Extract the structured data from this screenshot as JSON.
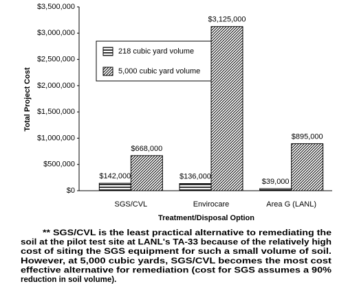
{
  "chart_data": {
    "type": "bar",
    "y_label": "Total Project Cost",
    "x_label": "Treatment/Disposal Option",
    "categories": [
      "SGS/CVL",
      "Envirocare",
      "Area G (LANL)"
    ],
    "series": [
      {
        "name": "218 cubic yard volume",
        "color": "#000000",
        "pattern": "horizontal",
        "values": [
          142000,
          136000,
          39000
        ],
        "value_labels": [
          "$142,000",
          "$136,000",
          "$39,000"
        ]
      },
      {
        "name": "5,000 cubic yard volume",
        "color": "#000000",
        "pattern": "diagonal",
        "values": [
          668000,
          3125000,
          895000
        ],
        "value_labels": [
          "$668,000",
          "$3,125,000",
          "$895,000"
        ]
      }
    ],
    "ylim": [
      0,
      3500000
    ],
    "yticks": [
      {
        "value": 0,
        "label": "$0"
      },
      {
        "value": 500000,
        "label": "$500,000"
      },
      {
        "value": 1000000,
        "label": "$1,000,000"
      },
      {
        "value": 1500000,
        "label": "$1,500,000"
      },
      {
        "value": 2000000,
        "label": "$2,000,000"
      },
      {
        "value": 2500000,
        "label": "$2,500,000"
      },
      {
        "value": 3000000,
        "label": "$3,000,000"
      },
      {
        "value": 3500000,
        "label": "$3,500,000"
      }
    ],
    "grid": false,
    "legend": "upper left"
  },
  "note": {
    "lines": [
      "** SGS/CVL is the least practical alternative to remediating the",
      "soil at the pilot test site at LANL's TA-33 because of the relatively high",
      "cost of siting the SGS equipment for such a small volume of soil.",
      "However, at 5,000 cubic yards, SGS/CVL becomes the most cost",
      "effective alternative for remediation (cost for SGS assumes a 90%",
      "reduction in soil volume)."
    ]
  }
}
